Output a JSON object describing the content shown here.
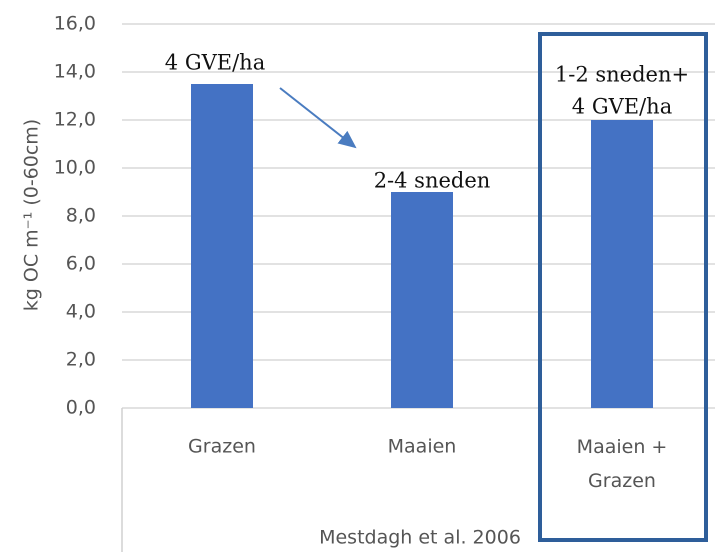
{
  "chart_data": {
    "type": "bar",
    "ylabel": "kg OC m⁻¹ (0-60cm)",
    "xlabel": "Mestdagh et al. 2006",
    "categories": [
      "Grazen",
      "Maaien",
      "Maaien + Grazen"
    ],
    "values": [
      13.5,
      9.0,
      12.0
    ],
    "color": "#4472c4",
    "ylim": [
      0,
      16
    ],
    "yticks": [
      {
        "value": 0,
        "label": "0,0"
      },
      {
        "value": 2,
        "label": "2,0"
      },
      {
        "value": 4,
        "label": "4,0"
      },
      {
        "value": 6,
        "label": "6,0"
      },
      {
        "value": 8,
        "label": "8,0"
      },
      {
        "value": 10,
        "label": "10,0"
      },
      {
        "value": 12,
        "label": "12,0"
      },
      {
        "value": 14,
        "label": "14,0"
      },
      {
        "value": 16,
        "label": "16,0"
      }
    ],
    "grid": true,
    "annotations": [
      "4 GVE/ha",
      "2-4 sneden",
      "1-2 sneden+",
      "4 GVE/ha"
    ]
  }
}
